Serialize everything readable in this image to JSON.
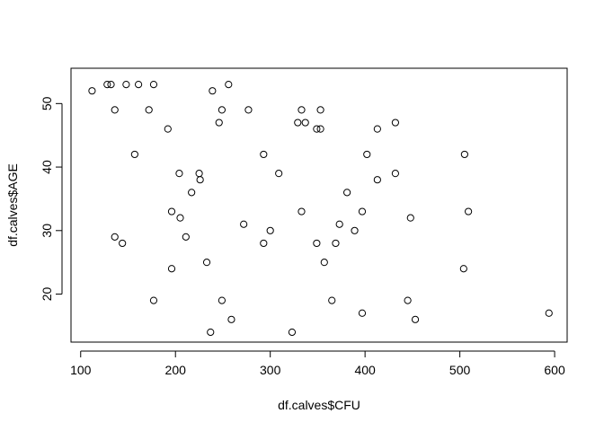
{
  "chart_data": {
    "type": "scatter",
    "title": "",
    "xlabel": "df.calves$CFU",
    "ylabel": "df.calves$AGE",
    "xlim": [
      89.8,
      613.2
    ],
    "ylim": [
      12.44,
      55.56
    ],
    "xticks": [
      100,
      200,
      300,
      400,
      500,
      600
    ],
    "yticks": [
      20,
      30,
      40,
      50
    ],
    "grid": false,
    "legend": "none",
    "marker": "open-circle",
    "colors": {
      "frame": "#000000",
      "points": "#000000",
      "background": "#ffffff"
    },
    "points": [
      {
        "x": 112,
        "y": 52
      },
      {
        "x": 128,
        "y": 53
      },
      {
        "x": 132,
        "y": 53
      },
      {
        "x": 136,
        "y": 49
      },
      {
        "x": 148,
        "y": 53
      },
      {
        "x": 161,
        "y": 53
      },
      {
        "x": 172,
        "y": 49
      },
      {
        "x": 177,
        "y": 53
      },
      {
        "x": 157,
        "y": 42
      },
      {
        "x": 192,
        "y": 46
      },
      {
        "x": 239,
        "y": 52
      },
      {
        "x": 256,
        "y": 53
      },
      {
        "x": 249,
        "y": 49
      },
      {
        "x": 277,
        "y": 49
      },
      {
        "x": 246,
        "y": 47
      },
      {
        "x": 204,
        "y": 39
      },
      {
        "x": 225,
        "y": 39
      },
      {
        "x": 226,
        "y": 38
      },
      {
        "x": 217,
        "y": 36
      },
      {
        "x": 196,
        "y": 33
      },
      {
        "x": 205,
        "y": 32
      },
      {
        "x": 211,
        "y": 29
      },
      {
        "x": 136,
        "y": 29
      },
      {
        "x": 144,
        "y": 28
      },
      {
        "x": 196,
        "y": 24
      },
      {
        "x": 177,
        "y": 19
      },
      {
        "x": 233,
        "y": 25
      },
      {
        "x": 249,
        "y": 19
      },
      {
        "x": 259,
        "y": 16
      },
      {
        "x": 237,
        "y": 14
      },
      {
        "x": 272,
        "y": 31
      },
      {
        "x": 293,
        "y": 42
      },
      {
        "x": 293,
        "y": 28
      },
      {
        "x": 300,
        "y": 30
      },
      {
        "x": 309,
        "y": 39
      },
      {
        "x": 329,
        "y": 47
      },
      {
        "x": 333,
        "y": 49
      },
      {
        "x": 337,
        "y": 47
      },
      {
        "x": 349,
        "y": 46
      },
      {
        "x": 353,
        "y": 46
      },
      {
        "x": 353,
        "y": 49
      },
      {
        "x": 333,
        "y": 33
      },
      {
        "x": 349,
        "y": 28
      },
      {
        "x": 357,
        "y": 25
      },
      {
        "x": 369,
        "y": 28
      },
      {
        "x": 373,
        "y": 31
      },
      {
        "x": 381,
        "y": 36
      },
      {
        "x": 389,
        "y": 30
      },
      {
        "x": 397,
        "y": 33
      },
      {
        "x": 365,
        "y": 19
      },
      {
        "x": 397,
        "y": 17
      },
      {
        "x": 323,
        "y": 14
      },
      {
        "x": 402,
        "y": 42
      },
      {
        "x": 413,
        "y": 46
      },
      {
        "x": 413,
        "y": 38
      },
      {
        "x": 432,
        "y": 47
      },
      {
        "x": 432,
        "y": 39
      },
      {
        "x": 448,
        "y": 32
      },
      {
        "x": 445,
        "y": 19
      },
      {
        "x": 453,
        "y": 16
      },
      {
        "x": 505,
        "y": 42
      },
      {
        "x": 509,
        "y": 33
      },
      {
        "x": 504,
        "y": 24
      },
      {
        "x": 594,
        "y": 17
      }
    ]
  }
}
